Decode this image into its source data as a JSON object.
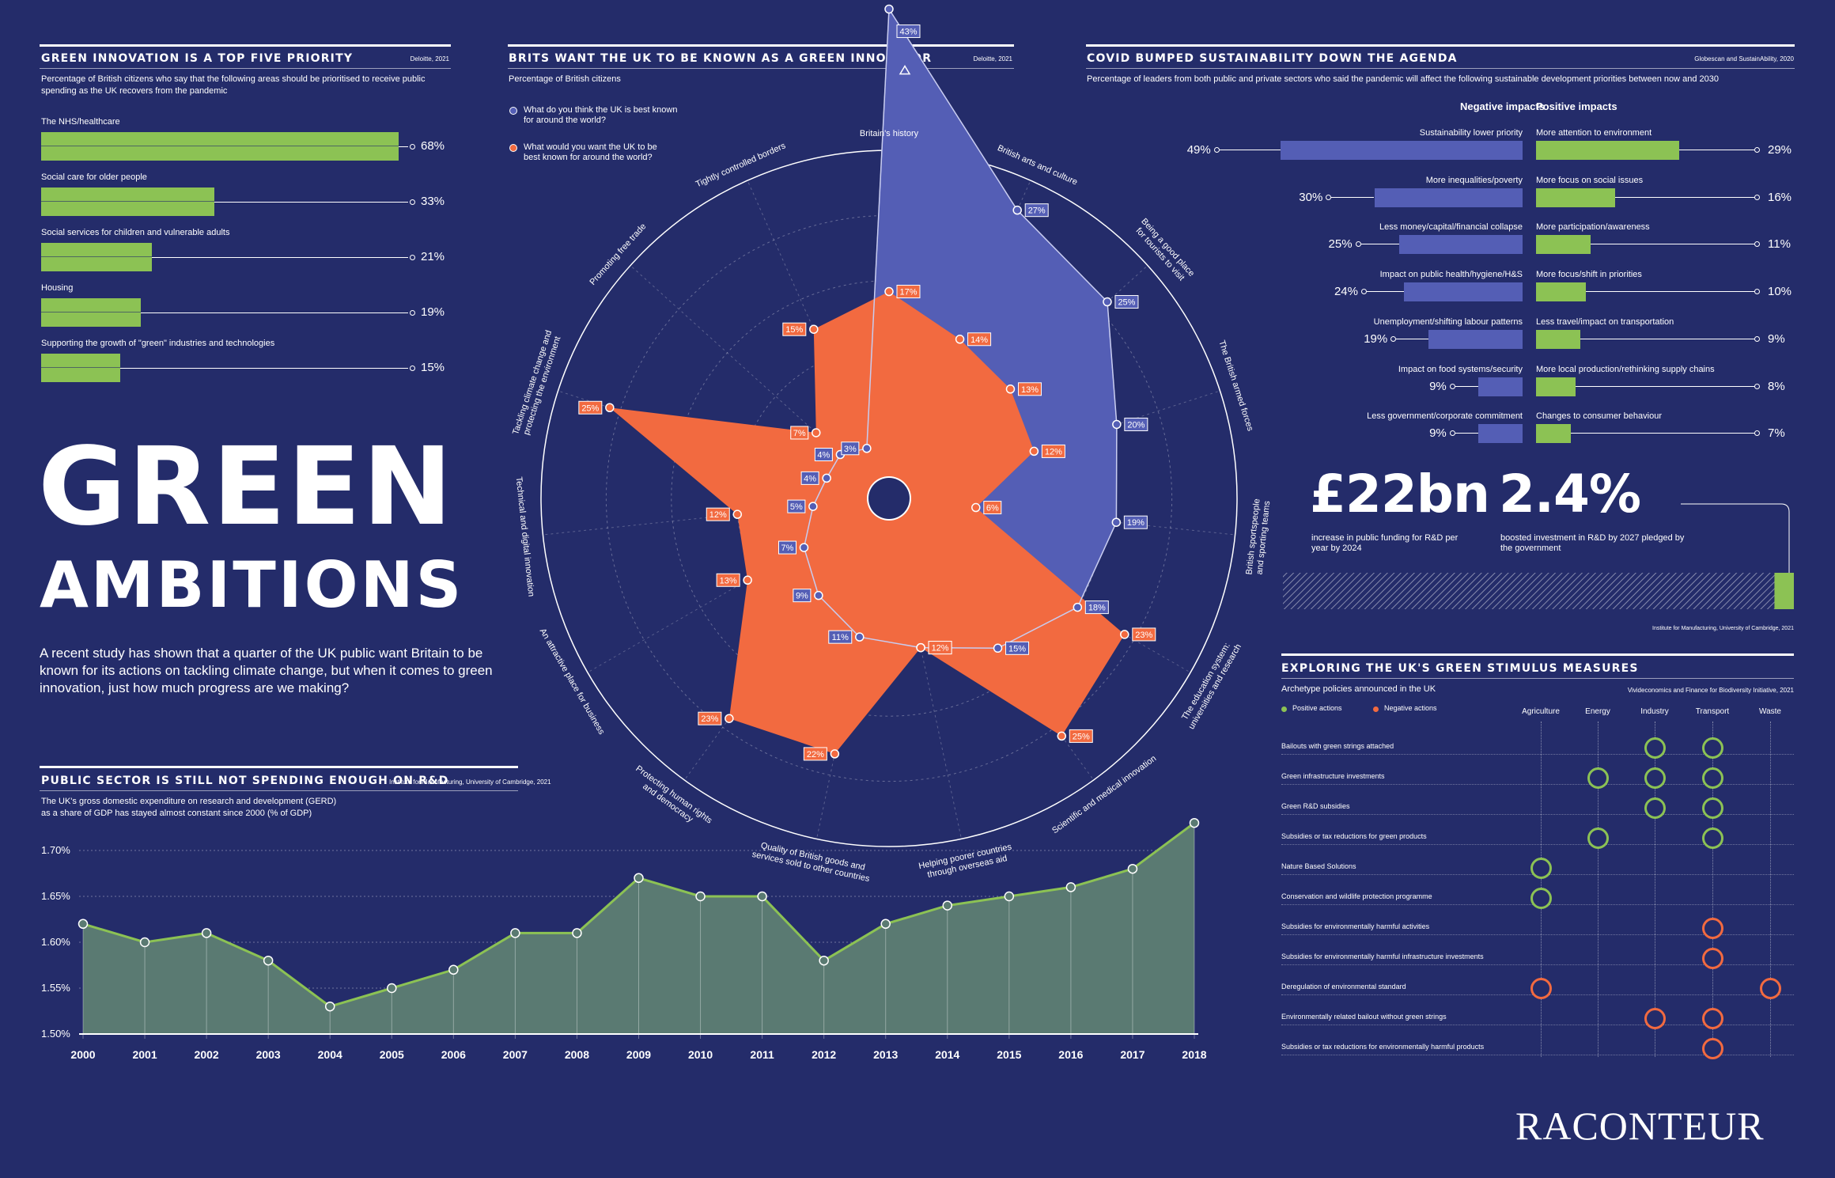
{
  "logo": "RACONTEUR",
  "main": {
    "title_line1": "GREEN",
    "title_line2": "AMBITIONS",
    "intro": "A recent study has shown that a quarter of the UK public want Britain to be known for its actions on tackling climate change, but when it comes to green innovation, just how much progress are we making?"
  },
  "priority": {
    "title": "GREEN INNOVATION IS A TOP FIVE PRIORITY",
    "source": "Deloitte, 2021",
    "subtitle": "Percentage of British citizens who say that the following areas should be prioritised to receive public spending as the UK recovers from the pandemic",
    "items": [
      {
        "label": "The NHS/healthcare",
        "value": 68,
        "value_label": "68%"
      },
      {
        "label": "Social care for older people",
        "value": 33,
        "value_label": "33%"
      },
      {
        "label": "Social services for children and vulnerable adults",
        "value": 21,
        "value_label": "21%"
      },
      {
        "label": "Housing",
        "value": 19,
        "value_label": "19%"
      },
      {
        "label": "Supporting the growth of \"green\" industries and technologies",
        "value": 15,
        "value_label": "15%"
      }
    ]
  },
  "radar": {
    "title": "BRITS WANT THE UK TO BE KNOWN AS A GREEN INNOVATOR",
    "source": "Deloitte, 2021",
    "subtitle": "Percentage of British citizens",
    "legend_known": "What do you think the UK is best known for around the world?",
    "legend_want": "What would you want the UK to be best known for around the world?"
  },
  "covid": {
    "title": "COVID BUMPED SUSTAINABILITY DOWN THE AGENDA",
    "source": "Globescan and SustainAbility, 2020",
    "subtitle": "Percentage of leaders from both public and private sectors who said the pandemic will affect the following sustainable development priorities between now and 2030",
    "neg_header": "Negative impacts",
    "pos_header": "Positive impacts",
    "negative": [
      {
        "label": "Sustainability lower priority",
        "value": 49,
        "value_label": "49%"
      },
      {
        "label": "More inequalities/poverty",
        "value": 30,
        "value_label": "30%"
      },
      {
        "label": "Less money/capital/financial collapse",
        "value": 25,
        "value_label": "25%"
      },
      {
        "label": "Impact on public health/hygiene/H&S",
        "value": 24,
        "value_label": "24%"
      },
      {
        "label": "Unemployment/shifting labour patterns",
        "value": 19,
        "value_label": "19%"
      },
      {
        "label": "Impact on food systems/security",
        "value": 9,
        "value_label": "9%"
      },
      {
        "label": "Less government/corporate commitment",
        "value": 9,
        "value_label": "9%"
      }
    ],
    "positive": [
      {
        "label": "More attention to environment",
        "value": 29,
        "value_label": "29%"
      },
      {
        "label": "More focus on social issues",
        "value": 16,
        "value_label": "16%"
      },
      {
        "label": "More participation/awareness",
        "value": 11,
        "value_label": "11%"
      },
      {
        "label": "More focus/shift in priorities",
        "value": 10,
        "value_label": "10%"
      },
      {
        "label": "Less travel/impact on transportation",
        "value": 9,
        "value_label": "9%"
      },
      {
        "label": "More local production/rethinking supply chains",
        "value": 8,
        "value_label": "8%"
      },
      {
        "label": "Changes to consumer behaviour",
        "value": 7,
        "value_label": "7%"
      }
    ]
  },
  "stats": {
    "stat1_value": "£22bn",
    "stat1_label": "increase in public funding for R&D per year by 2024",
    "stat2_value": "2.4%",
    "stat2_label": "boosted investment in R&D by 2027 pledged by the government",
    "source": "Institute for Manufacturing, University of Cambridge, 2021",
    "gdp_progress_fraction": 0.962
  },
  "rnd": {
    "title": "PUBLIC SECTOR IS STILL NOT SPENDING ENOUGH ON R&D",
    "source": "Institute for Manufacturing, University of Cambridge, 2021",
    "subtitle_line1": "The UK's gross domestic expenditure on research and development (GERD)",
    "subtitle_line2": "as a share of GDP has stayed almost constant since 2000 (% of GDP)"
  },
  "stimulus": {
    "title": "EXPLORING THE UK'S GREEN STIMULUS MEASURES",
    "subtitle": "Archetype policies announced in the UK",
    "source": "Vivideconomics and Finance for Biodiversity Initiative, 2021",
    "legend_positive": "Positive actions",
    "legend_negative": "Negative actions",
    "columns": [
      "Agriculture",
      "Energy",
      "Industry",
      "Transport",
      "Waste"
    ],
    "rows": [
      {
        "label": "Bailouts with green strings attached",
        "cells": [
          "",
          "",
          "pos",
          "pos",
          ""
        ]
      },
      {
        "label": "Green infrastructure investments",
        "cells": [
          "",
          "pos",
          "pos",
          "pos",
          ""
        ]
      },
      {
        "label": "Green R&D subsidies",
        "cells": [
          "",
          "",
          "pos",
          "pos",
          ""
        ]
      },
      {
        "label": "Subsidies or tax reductions for green products",
        "cells": [
          "",
          "pos",
          "",
          "pos",
          ""
        ]
      },
      {
        "label": "Nature Based Solutions",
        "cells": [
          "pos",
          "",
          "",
          "",
          ""
        ]
      },
      {
        "label": "Conservation and wildlife protection programme",
        "cells": [
          "pos",
          "",
          "",
          "",
          ""
        ]
      },
      {
        "label": "Subsidies for environmentally harmful activities",
        "cells": [
          "",
          "",
          "",
          "neg",
          ""
        ]
      },
      {
        "label": "Subsidies for environmentally harmful infrastructure investments",
        "cells": [
          "",
          "",
          "",
          "neg",
          ""
        ]
      },
      {
        "label": "Deregulation of environmental standard",
        "cells": [
          "neg",
          "",
          "",
          "",
          "neg"
        ]
      },
      {
        "label": "Environmentally related bailout without green strings",
        "cells": [
          "",
          "",
          "neg",
          "neg",
          ""
        ]
      },
      {
        "label": "Subsidies or tax reductions for environmentally harmful products",
        "cells": [
          "",
          "",
          "",
          "neg",
          ""
        ]
      }
    ]
  },
  "colors": {
    "background": "#242c6a",
    "green": "#8cc254",
    "blue": "#545eb5",
    "orange": "#f26a40",
    "area_fill": "#5a7a72"
  },
  "chart_data": [
    {
      "type": "bar",
      "orientation": "horizontal",
      "title": "GREEN INNOVATION IS A TOP FIVE PRIORITY",
      "categories": [
        "The NHS/healthcare",
        "Social care for older people",
        "Social services for children and vulnerable adults",
        "Housing",
        "Supporting the growth of \"green\" industries and technologies"
      ],
      "values": [
        68,
        33,
        21,
        19,
        15
      ],
      "unit": "%"
    },
    {
      "type": "radar",
      "title": "BRITS WANT THE UK TO BE KNOWN AS A GREEN INNOVATOR",
      "axis_max": 30,
      "categories": [
        {
          "name": "Britain's history",
          "lines": [
            "Britain's history"
          ]
        },
        {
          "name": "British arts and culture",
          "lines": [
            "British arts and culture"
          ]
        },
        {
          "name": "Being a good place for tourists to visit",
          "lines": [
            "Being a good place",
            "for tourists to visit"
          ]
        },
        {
          "name": "The British armed forces",
          "lines": [
            "The British armed forces"
          ]
        },
        {
          "name": "British sportspeople and sporting teams",
          "lines": [
            "British sportspeople",
            "and sporting teams"
          ]
        },
        {
          "name": "The education system: universities and research",
          "lines": [
            "The education system:",
            "universities and research"
          ]
        },
        {
          "name": "Scientific and medical innovation",
          "lines": [
            "Scientific and medical innovation"
          ]
        },
        {
          "name": "Helping poorer countries through overseas aid",
          "lines": [
            "Helping poorer countries",
            "through overseas aid"
          ]
        },
        {
          "name": "Quality of British goods and services sold to other countries",
          "lines": [
            "Quality of British goods and",
            "services sold to other countries"
          ]
        },
        {
          "name": "Protecting human rights and democracy",
          "lines": [
            "Protecting human rights",
            "and democracy"
          ]
        },
        {
          "name": "An attractive place for business",
          "lines": [
            "An attractive place for business"
          ]
        },
        {
          "name": "Technical and digital innovation",
          "lines": [
            "Technical and digital innovation"
          ]
        },
        {
          "name": "Tackling climate change and protecting the environment",
          "lines": [
            "Tackling climate change and",
            "protecting the environment"
          ]
        },
        {
          "name": "Promoting free trade",
          "lines": [
            "Promoting free trade"
          ]
        },
        {
          "name": "Tightly controlled borders",
          "lines": [
            "Tightly controlled borders"
          ]
        }
      ],
      "series": [
        {
          "name": "What do you think the UK is best known for around the world?",
          "values": [
            43,
            27,
            25,
            20,
            19,
            18,
            15,
            12,
            11,
            9,
            7,
            5,
            4,
            4,
            3
          ],
          "labels": [
            "43%",
            "27%",
            "25%",
            "20%",
            "19%",
            "18%",
            "15%",
            "12%",
            "11%",
            "9%",
            "7%",
            "5%",
            "4%",
            "4%",
            "3%"
          ]
        },
        {
          "name": "What would you want the UK to be best known for around the world?",
          "values": [
            17,
            14,
            13,
            12,
            6,
            23,
            25,
            12,
            22,
            23,
            13,
            12,
            25,
            7,
            15
          ],
          "labels": [
            "17%",
            "14%",
            "13%",
            "12%",
            "6%",
            "23%",
            "25%",
            "12%",
            "22%",
            "23%",
            "13%",
            "12%",
            "25%",
            "7%",
            "15%"
          ]
        }
      ]
    },
    {
      "type": "bar",
      "orientation": "horizontal",
      "title": "COVID BUMPED SUSTAINABILITY DOWN THE AGENDA",
      "series": [
        {
          "name": "Negative impacts",
          "categories": [
            "Sustainability lower priority",
            "More inequalities/poverty",
            "Less money/capital/financial collapse",
            "Impact on public health/hygiene/H&S",
            "Unemployment/shifting labour patterns",
            "Impact on food systems/security",
            "Less government/corporate commitment"
          ],
          "values": [
            49,
            30,
            25,
            24,
            19,
            9,
            9
          ]
        },
        {
          "name": "Positive impacts",
          "categories": [
            "More attention to environment",
            "More focus on social issues",
            "More participation/awareness",
            "More focus/shift in priorities",
            "Less travel/impact on transportation",
            "More local production/rethinking supply chains",
            "Changes to consumer behaviour"
          ],
          "values": [
            29,
            16,
            11,
            10,
            9,
            8,
            7
          ]
        }
      ],
      "unit": "%"
    },
    {
      "type": "area",
      "title": "PUBLIC SECTOR IS STILL NOT SPENDING ENOUGH ON R&D",
      "x": [
        "2000",
        "2001",
        "2002",
        "2003",
        "2004",
        "2005",
        "2006",
        "2007",
        "2008",
        "2009",
        "2010",
        "2011",
        "2012",
        "2013",
        "2014",
        "2015",
        "2016",
        "2017",
        "2018"
      ],
      "y": [
        1.62,
        1.6,
        1.61,
        1.58,
        1.53,
        1.55,
        1.57,
        1.61,
        1.61,
        1.67,
        1.65,
        1.65,
        1.58,
        1.62,
        1.64,
        1.65,
        1.66,
        1.68,
        1.73
      ],
      "ylim": [
        1.5,
        1.7
      ],
      "yticks": [
        "1.50%",
        "1.55%",
        "1.60%",
        "1.65%",
        "1.70%"
      ],
      "grid": true
    }
  ]
}
